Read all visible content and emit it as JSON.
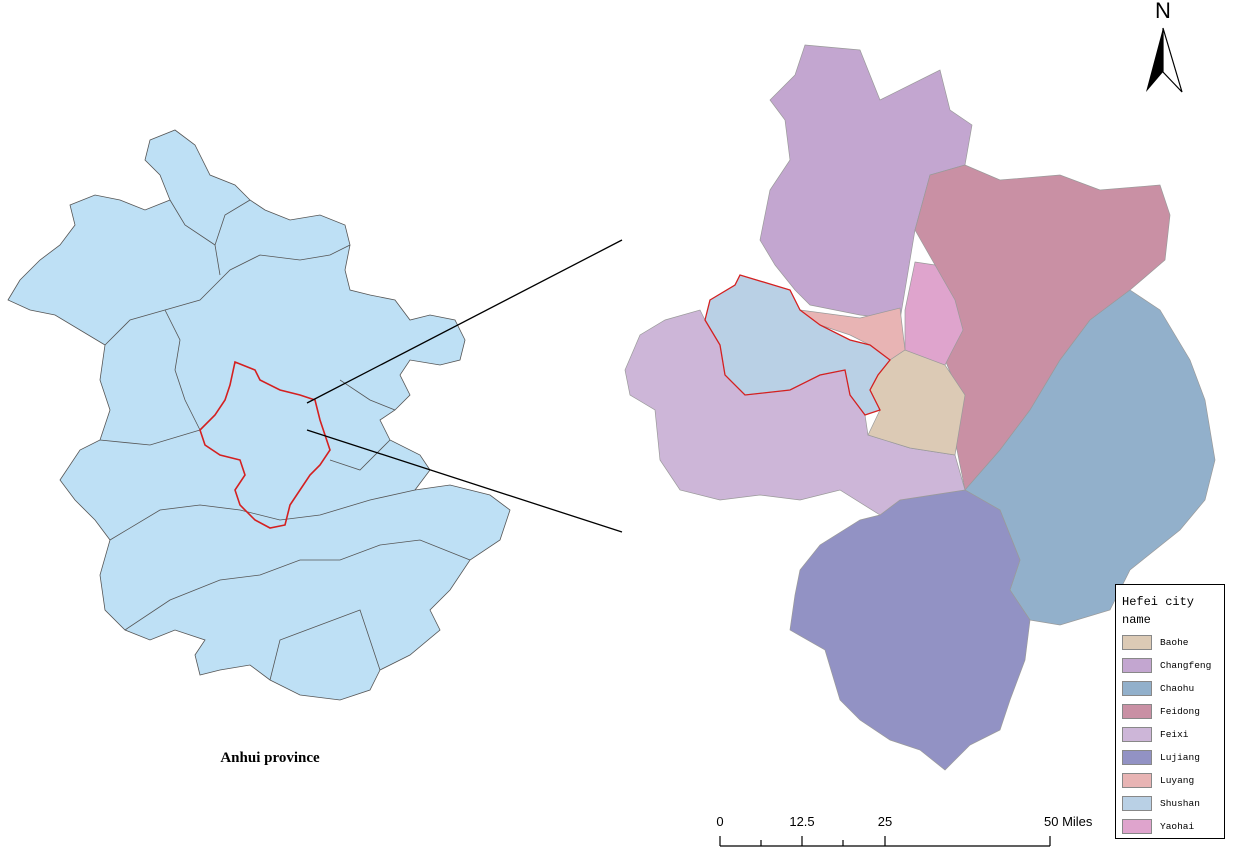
{
  "north_label": "N",
  "province_label": "Anhui province",
  "legend": {
    "title": "Hefei city name",
    "items": [
      {
        "name": "Baohe",
        "color": "#dccab5"
      },
      {
        "name": "Changfeng",
        "color": "#c3a6d0"
      },
      {
        "name": "Chaohu",
        "color": "#92b0cb"
      },
      {
        "name": "Feidong",
        "color": "#c990a4"
      },
      {
        "name": "Feixi",
        "color": "#cdb6d8"
      },
      {
        "name": "Lujiang",
        "color": "#9292c4"
      },
      {
        "name": "Luyang",
        "color": "#e8b4b4"
      },
      {
        "name": "Shushan",
        "color": "#b9d0e5"
      },
      {
        "name": "Yaohai",
        "color": "#dfa4cd"
      }
    ]
  },
  "scale_bar": {
    "labels": [
      "0",
      "12.5",
      "25",
      "50 Miles"
    ]
  }
}
